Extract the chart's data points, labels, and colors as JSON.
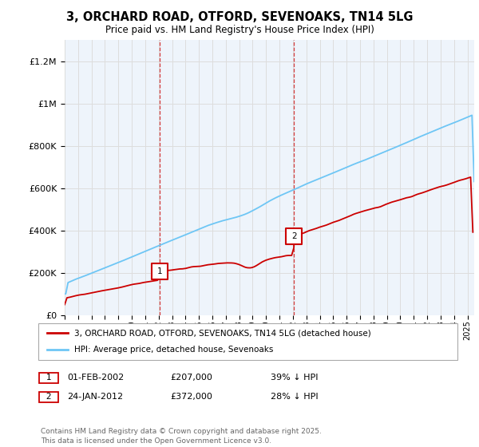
{
  "title_line1": "3, ORCHARD ROAD, OTFORD, SEVENOAKS, TN14 5LG",
  "title_line2": "Price paid vs. HM Land Registry's House Price Index (HPI)",
  "ylim": [
    0,
    1300000
  ],
  "yticks": [
    0,
    200000,
    400000,
    600000,
    800000,
    1000000,
    1200000
  ],
  "ytick_labels": [
    "£0",
    "£200K",
    "£400K",
    "£600K",
    "£800K",
    "£1M",
    "£1.2M"
  ],
  "hpi_color": "#6ec6f5",
  "price_color": "#cc0000",
  "vline_color": "#cc0000",
  "grid_color": "#dddddd",
  "bg_color": "#eef4fb",
  "transaction1": {
    "date_label": "01-FEB-2002",
    "price_label": "£207,000",
    "note": "39% ↓ HPI",
    "year": 2002.08,
    "price": 207000
  },
  "transaction2": {
    "date_label": "24-JAN-2012",
    "price_label": "£372,000",
    "note": "28% ↓ HPI",
    "year": 2012.07,
    "price": 372000
  },
  "legend_line1": "3, ORCHARD ROAD, OTFORD, SEVENOAKS, TN14 5LG (detached house)",
  "legend_line2": "HPI: Average price, detached house, Sevenoaks",
  "footer": "Contains HM Land Registry data © Crown copyright and database right 2025.\nThis data is licensed under the Open Government Licence v3.0."
}
